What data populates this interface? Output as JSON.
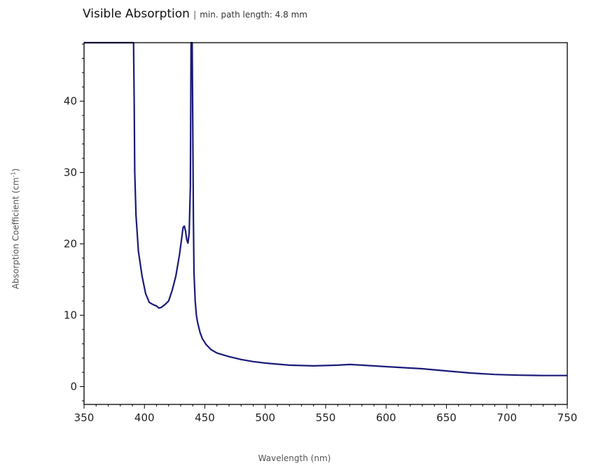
{
  "chart_data": {
    "type": "line",
    "title": "Visible Absorption",
    "title_separator": "|",
    "subtitle": "min. path length: 4.8 mm",
    "xlabel": "Wavelength (nm)",
    "ylabel_base": "Absorption Coefficient (cm",
    "ylabel_sup": "-1",
    "ylabel_tail": ")",
    "xlim": [
      350,
      750
    ],
    "ylim": [
      -2.5,
      48.2
    ],
    "x_ticks": [
      350,
      400,
      450,
      500,
      550,
      600,
      650,
      700,
      750
    ],
    "y_ticks": [
      0,
      10,
      20,
      30,
      40
    ],
    "grid": false,
    "line_color": "#1a1a78",
    "series": [
      {
        "x": [
          350,
          391,
          391.5,
          392,
          393,
          395,
          398,
          401,
          404,
          407,
          410,
          412,
          414,
          417,
          420,
          423,
          426,
          429,
          431,
          432,
          433,
          434,
          435,
          436,
          437,
          438,
          438.6,
          439.5,
          440,
          440.5,
          441,
          442,
          443,
          444,
          446,
          448,
          451,
          455,
          460,
          470,
          480,
          490,
          500,
          520,
          540,
          560,
          570,
          580,
          600,
          620,
          630,
          650,
          670,
          690,
          710,
          730,
          750
        ],
        "y": [
          48.2,
          48.2,
          40,
          30,
          24,
          19,
          15.5,
          13,
          11.8,
          11.5,
          11.3,
          11,
          11.1,
          11.5,
          12,
          13.5,
          15.5,
          18.5,
          21,
          22.3,
          22.5,
          21.8,
          20.6,
          20.1,
          21.5,
          28,
          48.2,
          48.2,
          36,
          24,
          16,
          12,
          10,
          9,
          7.6,
          6.7,
          5.9,
          5.2,
          4.7,
          4.2,
          3.8,
          3.5,
          3.3,
          3.0,
          2.9,
          3.0,
          3.1,
          3.0,
          2.8,
          2.6,
          2.5,
          2.2,
          1.9,
          1.7,
          1.6,
          1.55,
          1.55
        ]
      }
    ]
  }
}
